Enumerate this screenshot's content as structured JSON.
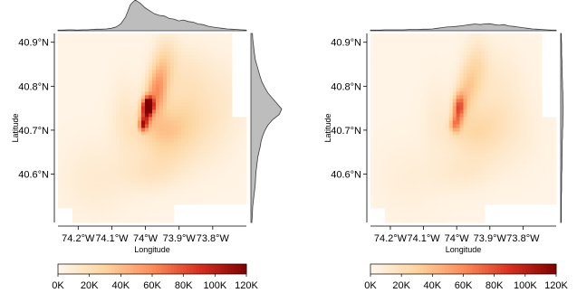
{
  "panels": [
    {
      "name": "left",
      "marginal_top_profile": [
        0.02,
        0.02,
        0.03,
        0.03,
        0.02,
        0.03,
        0.03,
        0.04,
        0.05,
        0.05,
        0.06,
        0.08,
        0.12,
        0.22,
        0.45,
        0.85,
        1.0,
        0.9,
        0.75,
        0.65,
        0.55,
        0.5,
        0.48,
        0.4,
        0.38,
        0.32,
        0.35,
        0.3,
        0.28,
        0.22,
        0.2,
        0.15,
        0.12,
        0.1,
        0.08,
        0.06,
        0.05,
        0.04,
        0.03,
        0.02
      ],
      "marginal_right_profile": [
        0.05,
        0.06,
        0.08,
        0.1,
        0.12,
        0.15,
        0.2,
        0.25,
        0.3,
        0.36,
        0.45,
        0.55,
        0.7,
        0.85,
        1.0,
        0.92,
        0.7,
        0.55,
        0.45,
        0.38,
        0.33,
        0.3,
        0.26,
        0.22,
        0.2,
        0.18,
        0.16,
        0.15,
        0.14,
        0.12,
        0.1,
        0.08,
        0.06,
        0.05,
        0.04,
        0.03
      ],
      "hotspots": [
        {
          "lon": -73.99,
          "lat": 40.757,
          "value": 120000,
          "sx": 0.01,
          "sy": 0.012
        },
        {
          "lon": -73.998,
          "lat": 40.74,
          "value": 75000,
          "sx": 0.012,
          "sy": 0.02
        },
        {
          "lon": -74.007,
          "lat": 40.712,
          "value": 70000,
          "sx": 0.008,
          "sy": 0.01
        },
        {
          "lon": -73.972,
          "lat": 40.78,
          "value": 38000,
          "sx": 0.02,
          "sy": 0.035
        },
        {
          "lon": -73.955,
          "lat": 40.815,
          "value": 25000,
          "sx": 0.02,
          "sy": 0.04
        },
        {
          "lon": -73.935,
          "lat": 40.86,
          "value": 16000,
          "sx": 0.025,
          "sy": 0.04
        },
        {
          "lon": -73.96,
          "lat": 40.7,
          "value": 20000,
          "sx": 0.05,
          "sy": 0.03
        },
        {
          "lon": -73.9,
          "lat": 40.73,
          "value": 15000,
          "sx": 0.05,
          "sy": 0.04
        },
        {
          "lon": -73.94,
          "lat": 40.65,
          "value": 14000,
          "sx": 0.06,
          "sy": 0.04
        },
        {
          "lon": -73.87,
          "lat": 40.82,
          "value": 12000,
          "sx": 0.05,
          "sy": 0.05
        },
        {
          "lon": -73.83,
          "lat": 40.7,
          "value": 10000,
          "sx": 0.06,
          "sy": 0.06
        },
        {
          "lon": -74.15,
          "lat": 40.59,
          "value": 8000,
          "sx": 0.07,
          "sy": 0.06
        },
        {
          "lon": -74.06,
          "lat": 40.73,
          "value": 11000,
          "sx": 0.03,
          "sy": 0.06
        },
        {
          "lon": -73.99,
          "lat": 40.6,
          "value": 10000,
          "sx": 0.06,
          "sy": 0.03
        },
        {
          "lon": -73.76,
          "lat": 40.78,
          "value": 7000,
          "sx": 0.05,
          "sy": 0.06
        }
      ]
    },
    {
      "name": "right",
      "marginal_top_profile": [
        0.02,
        0.02,
        0.02,
        0.03,
        0.03,
        0.03,
        0.03,
        0.03,
        0.04,
        0.04,
        0.04,
        0.05,
        0.05,
        0.06,
        0.08,
        0.1,
        0.12,
        0.13,
        0.14,
        0.16,
        0.18,
        0.2,
        0.22,
        0.2,
        0.22,
        0.23,
        0.2,
        0.18,
        0.2,
        0.16,
        0.14,
        0.12,
        0.1,
        0.08,
        0.06,
        0.05,
        0.04,
        0.03,
        0.02,
        0.02
      ],
      "marginal_right_profile": [
        0.02,
        0.02,
        0.03,
        0.03,
        0.03,
        0.04,
        0.04,
        0.05,
        0.05,
        0.06,
        0.06,
        0.07,
        0.07,
        0.08,
        0.08,
        0.08,
        0.07,
        0.07,
        0.06,
        0.06,
        0.05,
        0.05,
        0.05,
        0.04,
        0.04,
        0.04,
        0.03,
        0.03,
        0.03,
        0.03,
        0.02,
        0.02,
        0.02,
        0.02,
        0.02,
        0.02
      ],
      "hotspots": [
        {
          "lon": -73.99,
          "lat": 40.757,
          "value": 45000,
          "sx": 0.012,
          "sy": 0.02
        },
        {
          "lon": -73.998,
          "lat": 40.735,
          "value": 38000,
          "sx": 0.012,
          "sy": 0.025
        },
        {
          "lon": -74.007,
          "lat": 40.712,
          "value": 32000,
          "sx": 0.01,
          "sy": 0.012
        },
        {
          "lon": -73.972,
          "lat": 40.785,
          "value": 22000,
          "sx": 0.02,
          "sy": 0.035
        },
        {
          "lon": -73.95,
          "lat": 40.82,
          "value": 15000,
          "sx": 0.025,
          "sy": 0.04
        },
        {
          "lon": -73.935,
          "lat": 40.86,
          "value": 11000,
          "sx": 0.025,
          "sy": 0.04
        },
        {
          "lon": -73.96,
          "lat": 40.7,
          "value": 14000,
          "sx": 0.05,
          "sy": 0.03
        },
        {
          "lon": -73.9,
          "lat": 40.73,
          "value": 10000,
          "sx": 0.05,
          "sy": 0.04
        },
        {
          "lon": -73.94,
          "lat": 40.65,
          "value": 9000,
          "sx": 0.06,
          "sy": 0.04
        },
        {
          "lon": -73.87,
          "lat": 40.82,
          "value": 8000,
          "sx": 0.05,
          "sy": 0.05
        },
        {
          "lon": -73.83,
          "lat": 40.7,
          "value": 7000,
          "sx": 0.06,
          "sy": 0.06
        },
        {
          "lon": -74.15,
          "lat": 40.59,
          "value": 5000,
          "sx": 0.07,
          "sy": 0.06
        },
        {
          "lon": -74.06,
          "lat": 40.73,
          "value": 7000,
          "sx": 0.03,
          "sy": 0.06
        },
        {
          "lon": -73.99,
          "lat": 40.6,
          "value": 7000,
          "sx": 0.06,
          "sy": 0.03
        }
      ]
    }
  ],
  "colors": {
    "background": "#ffffff",
    "marginal_fill": "#bdbdbd",
    "marginal_stroke": "#3a3a3a",
    "colormap": [
      "#fff7ec",
      "#fdd49e",
      "#fc8d59",
      "#d7301f",
      "#7f0000"
    ]
  },
  "chart_data": {
    "type": "heatmap",
    "layout": "two side-by-side density maps with marginal distributions (top and right) and a horizontal colorbar under each",
    "xlabel": "Longitude",
    "ylabel": "Latitude",
    "x_unit": "degrees longitude (negative = West)",
    "y_unit": "degrees latitude (North)",
    "xlim": [
      -74.26,
      -73.7
    ],
    "ylim": [
      40.49,
      40.92
    ],
    "x_ticks": [
      {
        "value": -74.2,
        "label": "74.2°W"
      },
      {
        "value": -74.1,
        "label": "74.1°W"
      },
      {
        "value": -74.0,
        "label": "74°W"
      },
      {
        "value": -73.9,
        "label": "73.9°W"
      },
      {
        "value": -73.8,
        "label": "73.8°W"
      }
    ],
    "y_ticks": [
      {
        "value": 40.6,
        "label": "40.6°N"
      },
      {
        "value": 40.7,
        "label": "40.7°N"
      },
      {
        "value": 40.8,
        "label": "40.8°N"
      },
      {
        "value": 40.9,
        "label": "40.9°N"
      }
    ],
    "colorbar": {
      "range": [
        0,
        120000
      ],
      "ticks": [
        {
          "value": 0,
          "label": "0K"
        },
        {
          "value": 20000,
          "label": "20K"
        },
        {
          "value": 40000,
          "label": "40K"
        },
        {
          "value": 60000,
          "label": "60K"
        },
        {
          "value": 80000,
          "label": "80K"
        },
        {
          "value": 100000,
          "label": "100K"
        },
        {
          "value": 120000,
          "label": "120K"
        }
      ]
    },
    "panels": [
      {
        "peak_value": 120000,
        "peak_location": {
          "lon": -73.99,
          "lat": 40.757
        }
      },
      {
        "peak_value": 45000,
        "peak_location": {
          "lon": -73.99,
          "lat": 40.757
        }
      }
    ],
    "grid": false,
    "legend": "colorbar below each panel"
  }
}
